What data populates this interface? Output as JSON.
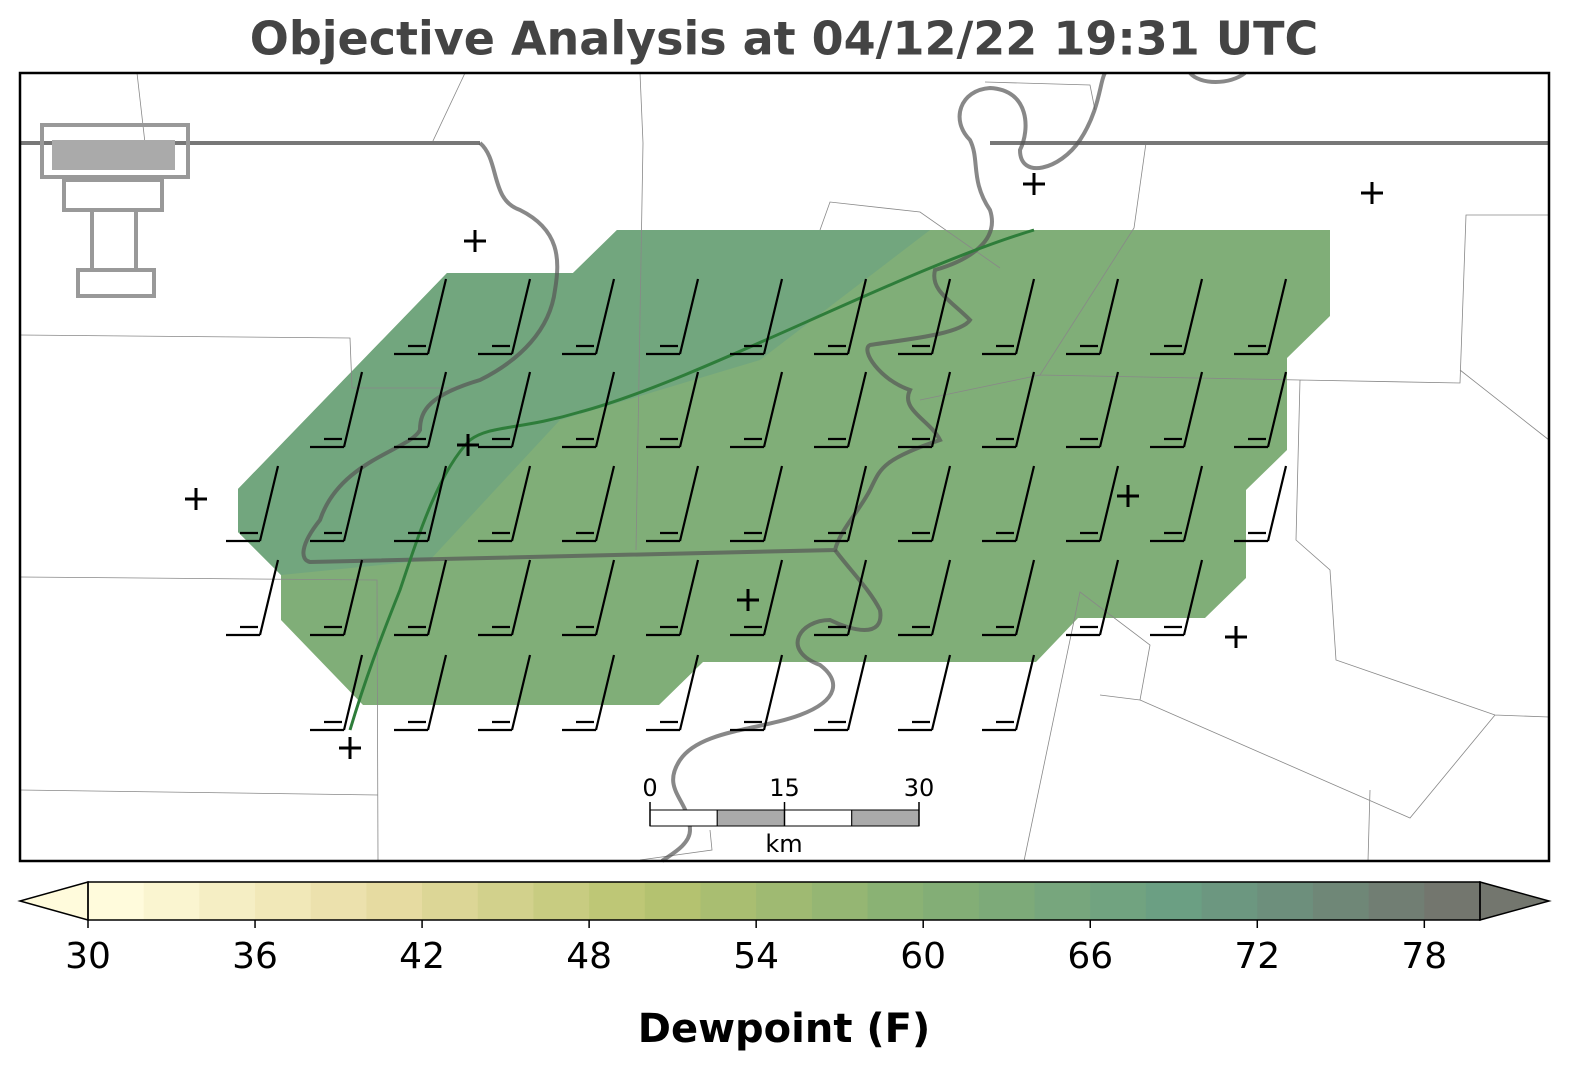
{
  "title": "Objective Analysis at 04/12/22 19:31 UTC",
  "map": {
    "scale_bar": {
      "ticks": [
        0,
        15,
        30
      ],
      "unit": "km"
    }
  },
  "colorbar": {
    "label": "Dewpoint (F)",
    "range": [
      30,
      80
    ],
    "step": 2,
    "ticks": [
      30,
      36,
      42,
      48,
      54,
      60,
      66,
      72,
      78
    ],
    "colors": [
      "#fffbdc",
      "#e8dca3",
      "#b8c470",
      "#86b074",
      "#6a9e84",
      "#73766e"
    ]
  }
}
